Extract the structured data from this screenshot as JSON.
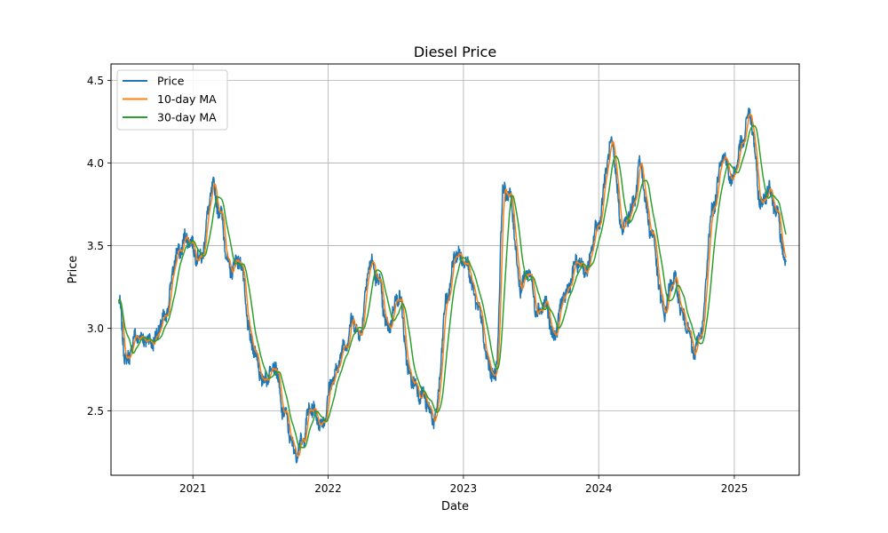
{
  "chart_data": {
    "type": "line",
    "title": "Diesel Price",
    "xlabel": "Date",
    "ylabel": "Price",
    "xlim": [
      "2020-05-25",
      "2025-06-25"
    ],
    "ylim": [
      2.11,
      4.6
    ],
    "xticks": [
      {
        "date": "2021-01-01",
        "label": "2021"
      },
      {
        "date": "2022-01-01",
        "label": "2022"
      },
      {
        "date": "2023-01-01",
        "label": "2023"
      },
      {
        "date": "2024-01-01",
        "label": "2024"
      },
      {
        "date": "2025-01-01",
        "label": "2025"
      }
    ],
    "yticks": [
      2.5,
      3.0,
      3.5,
      4.0,
      4.5
    ],
    "ytick_labels": [
      "2.5",
      "3.0",
      "3.5",
      "4.0",
      "4.5"
    ],
    "grid": true,
    "legend_position": "top-left",
    "series": [
      {
        "name": "Price",
        "color": "#1f77b4"
      },
      {
        "name": "10-day MA",
        "color": "#ff7f0e"
      },
      {
        "name": "30-day MA",
        "color": "#2ca02c"
      }
    ],
    "anchor_points": [
      [
        "2020-06-15",
        3.15
      ],
      [
        "2020-07-05",
        2.8
      ],
      [
        "2020-08-01",
        2.95
      ],
      [
        "2020-09-15",
        2.92
      ],
      [
        "2020-10-15",
        3.05
      ],
      [
        "2020-11-20",
        3.45
      ],
      [
        "2020-12-15",
        3.55
      ],
      [
        "2021-01-20",
        3.42
      ],
      [
        "2021-02-25",
        3.85
      ],
      [
        "2021-03-15",
        3.7
      ],
      [
        "2021-04-10",
        3.35
      ],
      [
        "2021-05-05",
        3.42
      ],
      [
        "2021-06-10",
        2.9
      ],
      [
        "2021-07-10",
        2.68
      ],
      [
        "2021-08-10",
        2.78
      ],
      [
        "2021-09-01",
        2.5
      ],
      [
        "2021-10-05",
        2.25
      ],
      [
        "2021-10-20",
        2.3
      ],
      [
        "2021-11-15",
        2.52
      ],
      [
        "2021-12-15",
        2.42
      ],
      [
        "2022-01-15",
        2.7
      ],
      [
        "2022-02-15",
        2.9
      ],
      [
        "2022-03-10",
        3.05
      ],
      [
        "2022-03-25",
        2.95
      ],
      [
        "2022-04-25",
        3.4
      ],
      [
        "2022-05-15",
        3.3
      ],
      [
        "2022-06-10",
        3.0
      ],
      [
        "2022-07-10",
        3.2
      ],
      [
        "2022-08-10",
        2.7
      ],
      [
        "2022-09-10",
        2.6
      ],
      [
        "2022-10-15",
        2.45
      ],
      [
        "2022-11-20",
        3.2
      ],
      [
        "2022-12-10",
        3.45
      ],
      [
        "2023-01-10",
        3.4
      ],
      [
        "2023-02-05",
        3.15
      ],
      [
        "2023-03-15",
        2.75
      ],
      [
        "2023-03-28",
        2.7
      ],
      [
        "2023-04-20",
        3.85
      ],
      [
        "2023-05-05",
        3.8
      ],
      [
        "2023-06-05",
        3.25
      ],
      [
        "2023-06-25",
        3.35
      ],
      [
        "2023-07-20",
        3.1
      ],
      [
        "2023-08-10",
        3.15
      ],
      [
        "2023-09-01",
        2.95
      ],
      [
        "2023-10-01",
        3.2
      ],
      [
        "2023-11-05",
        3.4
      ],
      [
        "2023-12-01",
        3.35
      ],
      [
        "2023-12-25",
        3.6
      ],
      [
        "2024-02-05",
        4.1
      ],
      [
        "2024-03-05",
        3.6
      ],
      [
        "2024-04-05",
        3.75
      ],
      [
        "2024-04-20",
        4.0
      ],
      [
        "2024-05-20",
        3.6
      ],
      [
        "2024-06-25",
        3.1
      ],
      [
        "2024-07-20",
        3.3
      ],
      [
        "2024-08-20",
        3.05
      ],
      [
        "2024-09-15",
        2.85
      ],
      [
        "2024-10-05",
        3.0
      ],
      [
        "2024-11-01",
        3.7
      ],
      [
        "2024-12-01",
        4.05
      ],
      [
        "2024-12-25",
        3.9
      ],
      [
        "2025-01-20",
        4.1
      ],
      [
        "2025-02-10",
        4.3
      ],
      [
        "2025-03-15",
        3.75
      ],
      [
        "2025-04-05",
        3.85
      ],
      [
        "2025-04-25",
        3.7
      ],
      [
        "2025-05-20",
        3.38
      ]
    ]
  }
}
